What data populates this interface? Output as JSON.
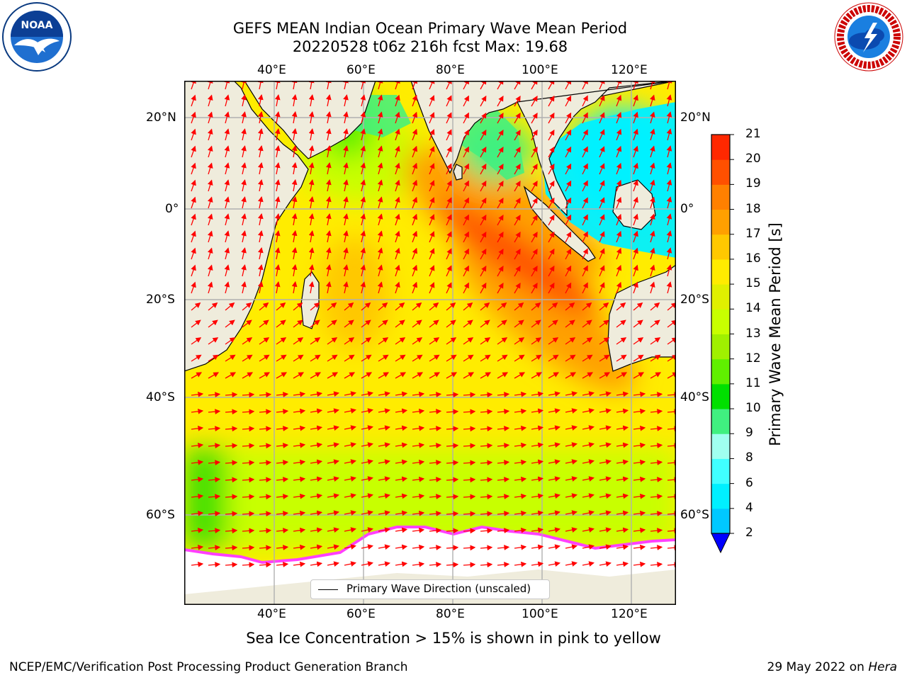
{
  "title": {
    "line1": "GEFS MEAN Indian Ocean Primary Wave Mean Period",
    "line2": "20220528 t06z 216h fcst   Max: 19.68"
  },
  "logos": {
    "left": {
      "icon": "noaa-logo-icon",
      "text": "NOAA",
      "ring_text": "NATIONAL OCEANIC AND ATMOSPHERIC ADMINISTRATION · U.S. DEPARTMENT OF COMMERCE"
    },
    "right": {
      "icon": "nws-logo-icon",
      "ring_text": "NATIONAL WEATHER SERVICE"
    }
  },
  "map": {
    "lon_labels": [
      "40°E",
      "60°E",
      "80°E",
      "100°E",
      "120°E"
    ],
    "lat_labels_left": [
      "20°N",
      "0°",
      "20°S",
      "40°S",
      "60°S"
    ],
    "lat_labels_right": [
      "20°N",
      "0°",
      "20°S",
      "40°S",
      "60°S"
    ],
    "land_color": "#efecdc",
    "ice_color": "#ffffff",
    "arrow_color": "#ff0000",
    "grid_color": "#b0b0b0"
  },
  "legend": {
    "label": "Primary Wave Direction (unscaled)"
  },
  "colorbar": {
    "label": "Primary Wave Mean Period [s]",
    "ticks": [
      "2",
      "4",
      "6",
      "8",
      "9",
      "10",
      "11",
      "12",
      "13",
      "14",
      "15",
      "16",
      "17",
      "18",
      "19",
      "20",
      "21"
    ],
    "colors": [
      "#0050ff",
      "#00c8ff",
      "#00f0ff",
      "#40ffff",
      "#a0fff0",
      "#40f080",
      "#00e000",
      "#60f000",
      "#a0f000",
      "#c8ff00",
      "#e0f000",
      "#ffec00",
      "#ffc800",
      "#ffa000",
      "#ff8000",
      "#ff5000",
      "#ff2800",
      "#ff0000"
    ],
    "extend_color": "#0000ff"
  },
  "caption": "Sea Ice Concentration > 15% is shown in pink to yellow",
  "footer": {
    "left": "NCEP/EMC/Verification Post Processing Product Generation Branch",
    "right_date": "29 May 2022 on ",
    "right_host": "Hera"
  }
}
